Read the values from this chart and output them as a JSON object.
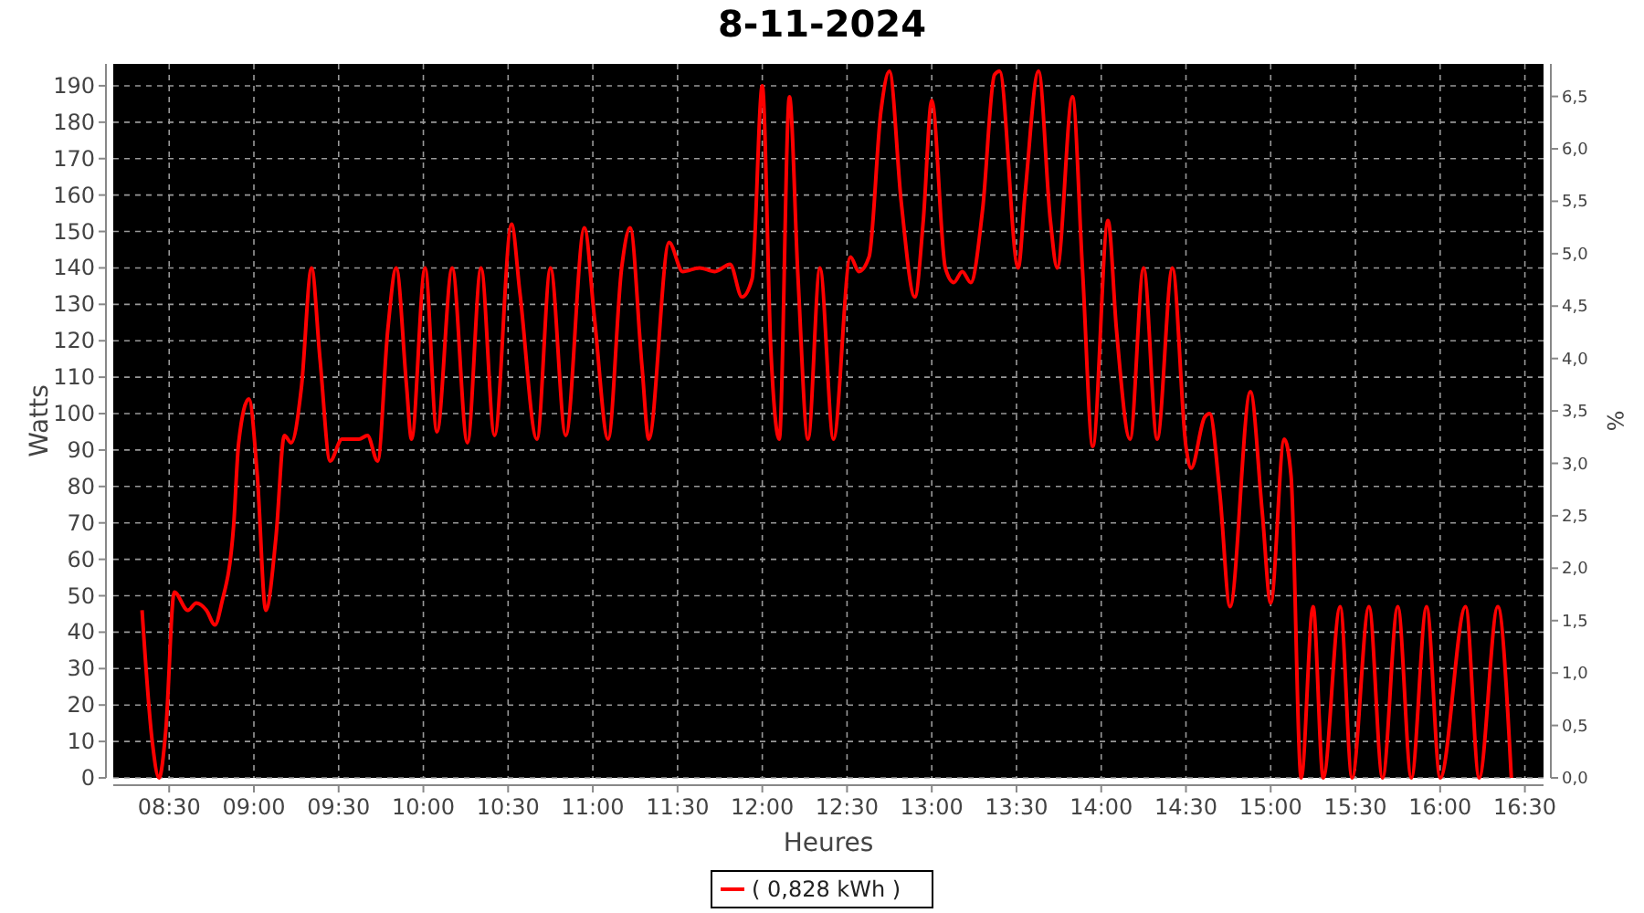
{
  "chart_data": {
    "type": "line",
    "title": "8-11-2024",
    "xlabel": "Heures",
    "ylabel": "Watts",
    "y2label": "%",
    "x": [
      8.34,
      8.4,
      8.44,
      8.48,
      8.53,
      8.61,
      8.66,
      8.72,
      8.77,
      8.81,
      8.88,
      8.91,
      8.97,
      9.02,
      9.07,
      9.13,
      9.18,
      9.22,
      9.28,
      9.34,
      9.39,
      9.45,
      9.52,
      9.62,
      9.67,
      9.73,
      9.79,
      9.84,
      9.9,
      9.93,
      10.01,
      10.08,
      10.17,
      10.26,
      10.34,
      10.42,
      10.52,
      10.57,
      10.67,
      10.75,
      10.84,
      10.95,
      11.01,
      11.09,
      11.17,
      11.22,
      11.29,
      11.33,
      11.45,
      11.53,
      11.63,
      11.72,
      11.81,
      11.88,
      11.94,
      12.0,
      12.05,
      12.1,
      12.16,
      12.21,
      12.27,
      12.34,
      12.42,
      12.52,
      12.57,
      12.63,
      12.7,
      12.75,
      12.82,
      12.9,
      12.95,
      13.0,
      13.08,
      13.13,
      13.18,
      13.23,
      13.3,
      13.37,
      13.4,
      13.51,
      13.55,
      13.63,
      13.7,
      13.74,
      13.83,
      13.89,
      13.95,
      14.04,
      14.09,
      14.17,
      14.25,
      14.33,
      14.42,
      14.5,
      14.53,
      14.61,
      14.64,
      14.7,
      14.76,
      14.88,
      14.95,
      15.0,
      15.08,
      15.12,
      15.18,
      15.25,
      15.31,
      15.41,
      15.48,
      15.58,
      15.66,
      15.75,
      15.83,
      15.92,
      16.0,
      16.15,
      16.23,
      16.34,
      16.42
    ],
    "series": [
      {
        "name": "( 0,828 kWh )",
        "color": "#ff0000",
        "values": [
          46,
          10,
          0,
          13,
          51,
          46,
          48,
          46,
          42,
          48,
          69,
          92,
          104,
          83,
          46,
          66,
          94,
          92,
          107,
          140,
          115,
          87,
          93,
          93,
          94,
          87,
          123,
          140,
          108,
          93,
          140,
          95,
          140,
          92,
          140,
          94,
          152,
          133,
          93,
          140,
          94,
          151,
          126,
          93,
          140,
          151,
          113,
          93,
          147,
          139,
          140,
          139,
          141,
          132,
          137,
          190,
          118,
          93,
          187,
          138,
          93,
          140,
          93,
          143,
          139,
          143,
          183,
          194,
          158,
          132,
          153,
          186,
          140,
          136,
          139,
          136,
          156,
          193,
          194,
          140,
          160,
          194,
          153,
          140,
          187,
          139,
          91,
          153,
          123,
          93,
          140,
          93,
          140,
          91,
          85,
          99,
          100,
          78,
          47,
          106,
          73,
          48,
          93,
          83,
          0,
          47,
          0,
          47,
          0,
          47,
          0,
          47,
          0,
          47,
          0,
          47,
          0,
          47,
          0
        ]
      }
    ],
    "xlim": [
      8.17,
      16.61
    ],
    "xticks": [
      {
        "value": 8.5,
        "label": "08:30"
      },
      {
        "value": 9,
        "label": "09:00"
      },
      {
        "value": 9.5,
        "label": "09:30"
      },
      {
        "value": 10,
        "label": "10:00"
      },
      {
        "value": 10.5,
        "label": "10:30"
      },
      {
        "value": 11,
        "label": "11:00"
      },
      {
        "value": 11.5,
        "label": "11:30"
      },
      {
        "value": 12,
        "label": "12:00"
      },
      {
        "value": 12.5,
        "label": "12:30"
      },
      {
        "value": 13,
        "label": "13:00"
      },
      {
        "value": 13.5,
        "label": "13:30"
      },
      {
        "value": 14,
        "label": "14:00"
      },
      {
        "value": 14.5,
        "label": "14:30"
      },
      {
        "value": 15,
        "label": "15:00"
      },
      {
        "value": 15.5,
        "label": "15:30"
      },
      {
        "value": 16,
        "label": "16:00"
      },
      {
        "value": 16.5,
        "label": "16:30"
      }
    ],
    "ylim": [
      0,
      196
    ],
    "yticks": [
      0,
      10,
      20,
      30,
      40,
      50,
      60,
      70,
      80,
      90,
      100,
      110,
      120,
      130,
      140,
      150,
      160,
      170,
      180,
      190
    ],
    "y2lim": [
      0,
      6.81
    ],
    "y2ticks": [
      {
        "value": 0,
        "label": "0,0"
      },
      {
        "value": 0.5,
        "label": "0,5"
      },
      {
        "value": 1,
        "label": "1,0"
      },
      {
        "value": 1.5,
        "label": "1,5"
      },
      {
        "value": 2,
        "label": "2,0"
      },
      {
        "value": 2.5,
        "label": "2,5"
      },
      {
        "value": 3,
        "label": "3,0"
      },
      {
        "value": 3.5,
        "label": "3,5"
      },
      {
        "value": 4,
        "label": "4,0"
      },
      {
        "value": 4.5,
        "label": "4,5"
      },
      {
        "value": 5,
        "label": "5,0"
      },
      {
        "value": 5.5,
        "label": "5,5"
      },
      {
        "value": 6,
        "label": "6,0"
      },
      {
        "value": 6.5,
        "label": "6,5"
      }
    ],
    "grid": true,
    "legend": "bottom",
    "marker": "none",
    "line_style": "solid"
  }
}
